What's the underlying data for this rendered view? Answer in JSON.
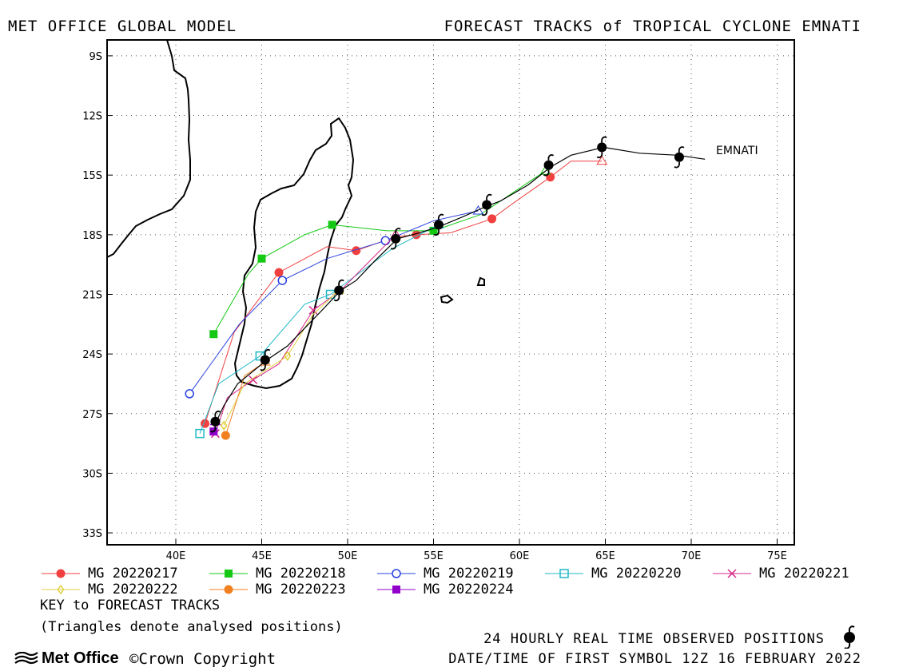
{
  "header": {
    "left": "MET OFFICE GLOBAL MODEL",
    "right": "FORECAST TRACKS of TROPICAL CYCLONE EMNATI"
  },
  "map": {
    "lon_range": [
      36,
      76
    ],
    "lat_range": [
      -8.2,
      -33.6
    ],
    "lat_ticks": [
      "9S",
      "12S",
      "15S",
      "18S",
      "21S",
      "24S",
      "27S",
      "30S",
      "33S"
    ],
    "lon_ticks": [
      "40E",
      "45E",
      "50E",
      "55E",
      "60E",
      "65E",
      "70E",
      "75E"
    ],
    "storm_label": "EMNATI",
    "observed_track": [
      [
        70.8,
        -14.2
      ],
      [
        69.2,
        -14.0
      ],
      [
        67,
        -13.9
      ],
      [
        64.9,
        -13.6
      ],
      [
        63,
        -14.0
      ],
      [
        61.8,
        -14.6
      ],
      [
        60.5,
        -15.5
      ],
      [
        58.9,
        -16.3
      ],
      [
        58.0,
        -16.6
      ],
      [
        56.7,
        -17.1
      ],
      [
        55.3,
        -17.6
      ],
      [
        54.2,
        -17.9
      ],
      [
        52.9,
        -18.2
      ],
      [
        51.6,
        -19.3
      ],
      [
        50.5,
        -20.3
      ],
      [
        49.6,
        -20.8
      ],
      [
        48.4,
        -21.9
      ],
      [
        47.5,
        -22.7
      ],
      [
        46.5,
        -23.6
      ],
      [
        45.3,
        -24.3
      ],
      [
        43.6,
        -25.5
      ],
      [
        42.8,
        -26.6
      ],
      [
        42.3,
        -27.5
      ]
    ],
    "observed_symbols": [
      [
        69.3,
        -14.1
      ],
      [
        64.8,
        -13.6
      ],
      [
        61.7,
        -14.5
      ],
      [
        58.1,
        -16.5
      ],
      [
        55.3,
        -17.5
      ],
      [
        52.8,
        -18.2
      ],
      [
        49.5,
        -20.8
      ],
      [
        45.2,
        -24.3
      ],
      [
        42.3,
        -27.4
      ]
    ],
    "colors": {
      "mg20220217": "#f04040",
      "mg20220218": "#14c814",
      "mg20220219": "#2840e0",
      "mg20220220": "#20b8c8",
      "mg20220221": "#d82888",
      "mg20220222": "#e0d040",
      "mg20220223": "#f08020",
      "mg20220224": "#9000c8"
    },
    "tracks": [
      {
        "name": "MG 20220217",
        "marker": "circle-filled",
        "color": "#f04040",
        "points": [
          [
            64.8,
            -14.3
          ],
          [
            63,
            -14.3
          ],
          [
            61.8,
            -15.1
          ],
          [
            59.5,
            -16.5
          ],
          [
            58.4,
            -17.2
          ],
          [
            56,
            -17.9
          ],
          [
            54,
            -18.0
          ],
          [
            52.8,
            -18.1
          ],
          [
            50.5,
            -18.8
          ],
          [
            48.8,
            -18.6
          ],
          [
            46,
            -19.9
          ],
          [
            43.4,
            -22.9
          ],
          [
            41.7,
            -27.5
          ]
        ]
      },
      {
        "name": "MG 20220218",
        "marker": "square-filled",
        "color": "#14c814",
        "points": [
          [
            61.5,
            -14.8
          ],
          [
            57.7,
            -17.0
          ],
          [
            55.0,
            -17.8
          ],
          [
            52.3,
            -17.8
          ],
          [
            49.1,
            -17.5
          ],
          [
            47.5,
            -18.0
          ],
          [
            45,
            -19.2
          ],
          [
            44.2,
            -20.0
          ],
          [
            42.2,
            -23.0
          ]
        ]
      },
      {
        "name": "MG 20220219",
        "marker": "circle-open",
        "color": "#2840e0",
        "points": [
          [
            57.6,
            -16.8
          ],
          [
            55.0,
            -17.3
          ],
          [
            52.2,
            -18.3
          ],
          [
            48.8,
            -19.2
          ],
          [
            46.2,
            -20.3
          ],
          [
            43.7,
            -22.5
          ],
          [
            40.8,
            -26.0
          ]
        ]
      },
      {
        "name": "MG 20220220",
        "marker": "square-open",
        "color": "#20b8c8",
        "points": [
          [
            55.3,
            -17.5
          ],
          [
            52.6,
            -18.7
          ],
          [
            49.0,
            -21.0
          ],
          [
            47.5,
            -21.5
          ],
          [
            44.9,
            -24.1
          ],
          [
            42.5,
            -25.5
          ],
          [
            41.4,
            -28.0
          ]
        ]
      },
      {
        "name": "MG 20220221",
        "marker": "x",
        "color": "#d82888",
        "points": [
          [
            52.8,
            -18.0
          ],
          [
            49.6,
            -20.8
          ],
          [
            48,
            -21.8
          ],
          [
            46.0,
            -24.5
          ],
          [
            44.5,
            -25.3
          ],
          [
            43,
            -26.2
          ],
          [
            42.3,
            -28.0
          ]
        ]
      },
      {
        "name": "MG 20220222",
        "marker": "diamond-open",
        "color": "#e0d040",
        "points": [
          [
            49.5,
            -20.8
          ],
          [
            48.0,
            -22.0
          ],
          [
            46.5,
            -24.1
          ],
          [
            44.0,
            -25.5
          ],
          [
            42.8,
            -27.6
          ]
        ]
      },
      {
        "name": "MG 20220223",
        "marker": "circle-filled",
        "color": "#f08020",
        "points": [
          [
            45.2,
            -24.4
          ],
          [
            44,
            -25.1
          ],
          [
            42.9,
            -28.1
          ]
        ]
      },
      {
        "name": "MG 20220224",
        "marker": "square-filled",
        "color": "#9000c8",
        "points": [
          [
            42.3,
            -27.4
          ],
          [
            42.2,
            -27.9
          ]
        ]
      }
    ]
  },
  "legend": {
    "entries": [
      {
        "label": "MG 20220217",
        "marker": "circle-filled",
        "color": "#f04040"
      },
      {
        "label": "MG 20220218",
        "marker": "square-filled",
        "color": "#14c814"
      },
      {
        "label": "MG 20220219",
        "marker": "circle-open",
        "color": "#2840e0"
      },
      {
        "label": "MG 20220220",
        "marker": "square-open",
        "color": "#20b8c8"
      },
      {
        "label": "MG 20220221",
        "marker": "x",
        "color": "#d82888"
      },
      {
        "label": "MG 20220222",
        "marker": "diamond-open",
        "color": "#e0d040"
      },
      {
        "label": "MG 20220223",
        "marker": "circle-filled",
        "color": "#f08020"
      },
      {
        "label": "MG 20220224",
        "marker": "square-filled",
        "color": "#9000c8"
      }
    ],
    "key_title": "KEY to FORECAST TRACKS",
    "key_note": "(Triangles denote analysed positions)"
  },
  "footer": {
    "observed_note": "24 HOURLY REAL TIME OBSERVED POSITIONS",
    "first_symbol": "DATE/TIME OF FIRST SYMBOL 12Z 16 FEBRUARY 2022",
    "logo_text": "Met Office",
    "copyright": "Crown Copyright"
  }
}
